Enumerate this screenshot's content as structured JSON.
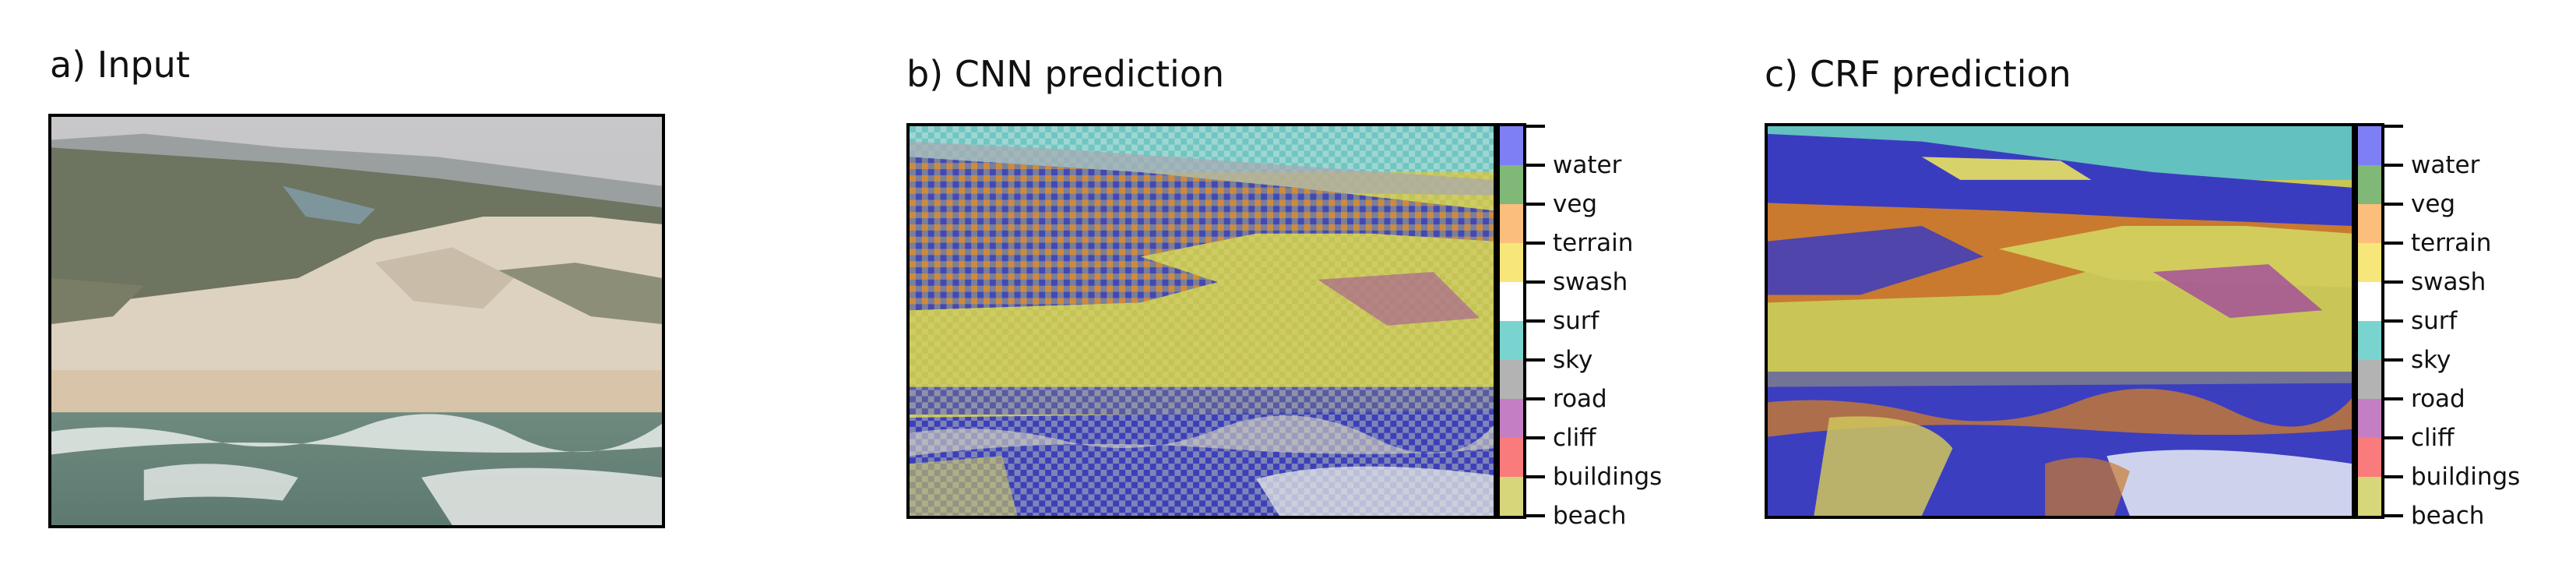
{
  "panels": [
    {
      "title": "a) Input"
    },
    {
      "title": "b) CNN prediction"
    },
    {
      "title": "c) CRF prediction"
    }
  ],
  "legend": {
    "classes": [
      {
        "label": "water",
        "color": "#7f7ff5"
      },
      {
        "label": "veg",
        "color": "#7fb877"
      },
      {
        "label": "terrain",
        "color": "#fbbe7c"
      },
      {
        "label": "swash",
        "color": "#f7e77a"
      },
      {
        "label": "surf",
        "color": "#ffffff"
      },
      {
        "label": "sky",
        "color": "#79d4cf"
      },
      {
        "label": "road",
        "color": "#b3b3b3"
      },
      {
        "label": "cliff",
        "color": "#c47fc4"
      },
      {
        "label": "buildings",
        "color": "#fa7b7b"
      },
      {
        "label": "beach",
        "color": "#d7d67a"
      }
    ]
  }
}
